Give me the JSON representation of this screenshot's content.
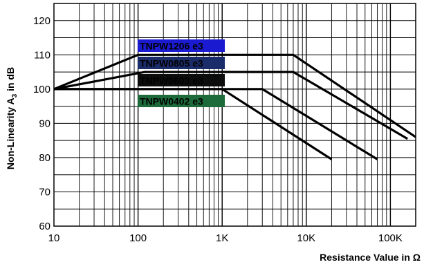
{
  "chart_data": {
    "type": "line",
    "xscale": "log",
    "xlim": [
      10,
      200000
    ],
    "ylim": [
      60,
      125
    ],
    "grid": true,
    "xlabel": "Resistance Value in Ω",
    "ylabel_main": "Non-Linearity A",
    "ylabel_sub": "3",
    "ylabel_unit": " in dB",
    "xticks": [
      {
        "value": 10,
        "label": "10"
      },
      {
        "value": 100,
        "label": "100"
      },
      {
        "value": 1000,
        "label": "1K"
      },
      {
        "value": 10000,
        "label": "10K"
      },
      {
        "value": 100000,
        "label": "100K"
      }
    ],
    "yticks": [
      60,
      70,
      80,
      90,
      100,
      110,
      120
    ],
    "series": [
      {
        "name": "TNPW1206 e3",
        "color": "#1a1ad0",
        "x": [
          10,
          100,
          7000,
          200000
        ],
        "y": [
          100,
          110,
          110,
          86
        ]
      },
      {
        "name": "TNPW0805 e3",
        "color": "#1b2c6b",
        "x": [
          10,
          120,
          7000,
          160000
        ],
        "y": [
          100,
          105,
          105,
          85.5
        ]
      },
      {
        "name": "TNPW0603 e3",
        "color": "#0c0c0c",
        "x": [
          10,
          3000,
          70000
        ],
        "y": [
          100,
          100,
          79.5
        ]
      },
      {
        "name": "TNPW0402 e3",
        "color": "#1d6b3a",
        "x": [
          10,
          1000,
          20000
        ],
        "y": [
          100,
          100,
          79.5
        ]
      }
    ]
  }
}
